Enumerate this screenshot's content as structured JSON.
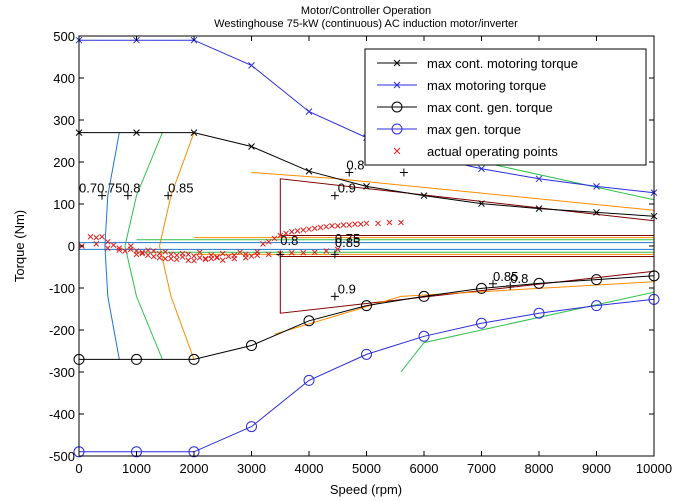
{
  "chart_data": {
    "type": "line",
    "title": "Motor/Controller Operation",
    "subtitle": "Westinghouse 75-kW (continuous) AC induction motor/inverter",
    "xlabel": "Speed (rpm)",
    "ylabel": "Torque (Nm)",
    "xlim": [
      0,
      10000
    ],
    "ylim": [
      -500,
      500
    ],
    "xticks": [
      0,
      1000,
      2000,
      3000,
      4000,
      5000,
      6000,
      7000,
      8000,
      9000,
      10000
    ],
    "yticks": [
      -500,
      -400,
      -300,
      -200,
      -100,
      0,
      100,
      200,
      300,
      400,
      500
    ],
    "grid": false,
    "legend_position": "top-right",
    "series": [
      {
        "name": "max cont. motoring torque",
        "color": "#000000",
        "marker": "x",
        "x": [
          0,
          1000,
          2000,
          3000,
          4000,
          5000,
          6000,
          7000,
          8000,
          9000,
          10000
        ],
        "y": [
          270,
          270,
          270,
          237,
          178,
          142,
          120,
          101,
          89,
          80,
          71
        ]
      },
      {
        "name": "max motoring torque",
        "color": "#2b2bdc",
        "marker": "x",
        "x": [
          0,
          1000,
          2000,
          3000,
          4000,
          5000,
          6000,
          7000,
          8000,
          9000,
          10000
        ],
        "y": [
          490,
          490,
          490,
          430,
          320,
          258,
          215,
          184,
          160,
          142,
          127
        ]
      },
      {
        "name": "max cont. gen. torque",
        "color": "#000000",
        "marker": "o",
        "x": [
          0,
          1000,
          2000,
          3000,
          4000,
          5000,
          6000,
          7000,
          8000,
          9000,
          10000
        ],
        "y": [
          -270,
          -270,
          -270,
          -237,
          -178,
          -142,
          -120,
          -101,
          -89,
          -80,
          -71
        ]
      },
      {
        "name": "max gen. torque",
        "color": "#2b2bdc",
        "marker": "o",
        "x": [
          0,
          1000,
          2000,
          3000,
          4000,
          5000,
          6000,
          7000,
          8000,
          9000,
          10000
        ],
        "y": [
          -490,
          -490,
          -490,
          -430,
          -320,
          -258,
          -215,
          -184,
          -160,
          -142,
          -127
        ]
      },
      {
        "name": "actual operating points",
        "color": "#e02020",
        "marker": "x",
        "x": [
          50,
          200,
          300,
          400,
          500,
          600,
          700,
          800,
          900,
          1000,
          1100,
          1200,
          1300,
          1400,
          1500,
          1600,
          1700,
          1800,
          1900,
          2000,
          2100,
          2200,
          2300,
          2400,
          2500,
          2600,
          2700,
          2800,
          2900,
          3000,
          3100,
          3200,
          3300,
          3400,
          3500,
          3600,
          3700,
          3800,
          3900,
          4000,
          4100,
          4200,
          4300,
          4400,
          4500,
          4600,
          4700,
          4800,
          4900,
          5000,
          5200,
          5400,
          5600,
          300,
          500,
          700,
          900,
          1100,
          1300,
          1500,
          1700,
          1900,
          2100,
          2300,
          2500,
          2700,
          2900,
          3100,
          3300,
          3500,
          3700,
          3900,
          4100,
          4300,
          4500,
          1000,
          1200,
          1400,
          1600,
          1800,
          2000,
          2200,
          2400
        ],
        "y": [
          0,
          22,
          20,
          22,
          10,
          2,
          -5,
          -12,
          -8,
          -12,
          -15,
          -10,
          -12,
          -18,
          -14,
          -20,
          -22,
          -18,
          -20,
          -24,
          -15,
          -30,
          -22,
          -26,
          -18,
          -25,
          -22,
          -15,
          -20,
          -24,
          -14,
          5,
          10,
          18,
          25,
          30,
          34,
          36,
          38,
          40,
          42,
          44,
          46,
          48,
          48,
          50,
          50,
          52,
          52,
          54,
          54,
          56,
          56,
          5,
          -5,
          -10,
          0,
          -18,
          -25,
          -30,
          -32,
          -34,
          -28,
          -30,
          -34,
          -30,
          -28,
          -22,
          -20,
          -18,
          -16,
          -16,
          -15,
          -12,
          -8,
          -20,
          -22,
          -28,
          -30,
          -26,
          -35,
          -32,
          -28
        ]
      }
    ],
    "contour_labels": [
      {
        "text": "0.70.750.8",
        "x": 0,
        "y": 120
      },
      {
        "text": "0.85",
        "x": 1550,
        "y": 120
      },
      {
        "text": "0.8",
        "x": 4650,
        "y": 175
      },
      {
        "text": "0.9",
        "x": 4500,
        "y": 120
      },
      {
        "text": "0.8",
        "x": 3500,
        "y": -5
      },
      {
        "text": "0.75",
        "x": 4450,
        "y": 0
      },
      {
        "text": "0.85",
        "x": 4450,
        "y": -10
      },
      {
        "text": "0.9",
        "x": 4500,
        "y": -120
      },
      {
        "text": "0.85",
        "x": 7200,
        "y": -90
      },
      {
        "text": "0.8",
        "x": 7500,
        "y": -95
      }
    ],
    "contour_marks": [
      {
        "x": 400,
        "y": 120
      },
      {
        "x": 850,
        "y": 120
      },
      {
        "x": 1550,
        "y": 120
      },
      {
        "x": 4700,
        "y": 175
      },
      {
        "x": 5650,
        "y": 175
      },
      {
        "x": 4450,
        "y": 120
      },
      {
        "x": 3500,
        "y": -20
      },
      {
        "x": 4450,
        "y": -20
      },
      {
        "x": 4450,
        "y": -120
      },
      {
        "x": 7200,
        "y": -90
      },
      {
        "x": 7500,
        "y": -95
      }
    ],
    "contour_lines": [
      {
        "color": "#1f77d0",
        "x": [
          700,
          500,
          450,
          500,
          700
        ],
        "y": [
          270,
          120,
          0,
          -120,
          -270
        ]
      },
      {
        "color": "#2ec04a",
        "x": [
          1450,
          1000,
          800,
          1000,
          1450
        ],
        "y": [
          270,
          120,
          0,
          -120,
          -270
        ]
      },
      {
        "color": "#ff8c00",
        "x": [
          2000,
          1600,
          1400,
          1600,
          2000
        ],
        "y": [
          270,
          120,
          0,
          -120,
          -270
        ]
      },
      {
        "color": "#800000",
        "x": [
          10000,
          3500,
          3500,
          10000
        ],
        "y": [
          60,
          160,
          25,
          25
        ]
      },
      {
        "color": "#800000",
        "x": [
          10000,
          3500,
          3500,
          10000
        ],
        "y": [
          -25,
          -25,
          -160,
          -60
        ]
      },
      {
        "color": "#ff8c00",
        "x": [
          10000,
          4500,
          3000
        ],
        "y": [
          85,
          160,
          175
        ]
      },
      {
        "color": "#ff8c00",
        "x": [
          10000,
          5600,
          3400
        ],
        "y": [
          -85,
          -120,
          -210
        ]
      },
      {
        "color": "#2ec04a",
        "x": [
          10000,
          6000,
          5600
        ],
        "y": [
          110,
          230,
          300
        ]
      },
      {
        "color": "#2ec04a",
        "x": [
          10000,
          6000,
          5600
        ],
        "y": [
          -110,
          -230,
          -300
        ]
      },
      {
        "color": "#1f77d0",
        "x": [
          0,
          10000
        ],
        "y": [
          8,
          8
        ]
      },
      {
        "color": "#1f77d0",
        "x": [
          0,
          10000
        ],
        "y": [
          -8,
          -8
        ]
      },
      {
        "color": "#2ec04a",
        "x": [
          1000,
          10000
        ],
        "y": [
          15,
          15
        ]
      },
      {
        "color": "#2ec04a",
        "x": [
          1000,
          10000
        ],
        "y": [
          -15,
          -15
        ]
      },
      {
        "color": "#ff8c00",
        "x": [
          2000,
          10000
        ],
        "y": [
          20,
          20
        ]
      },
      {
        "color": "#ff8c00",
        "x": [
          2000,
          10000
        ],
        "y": [
          -20,
          -20
        ]
      }
    ]
  }
}
